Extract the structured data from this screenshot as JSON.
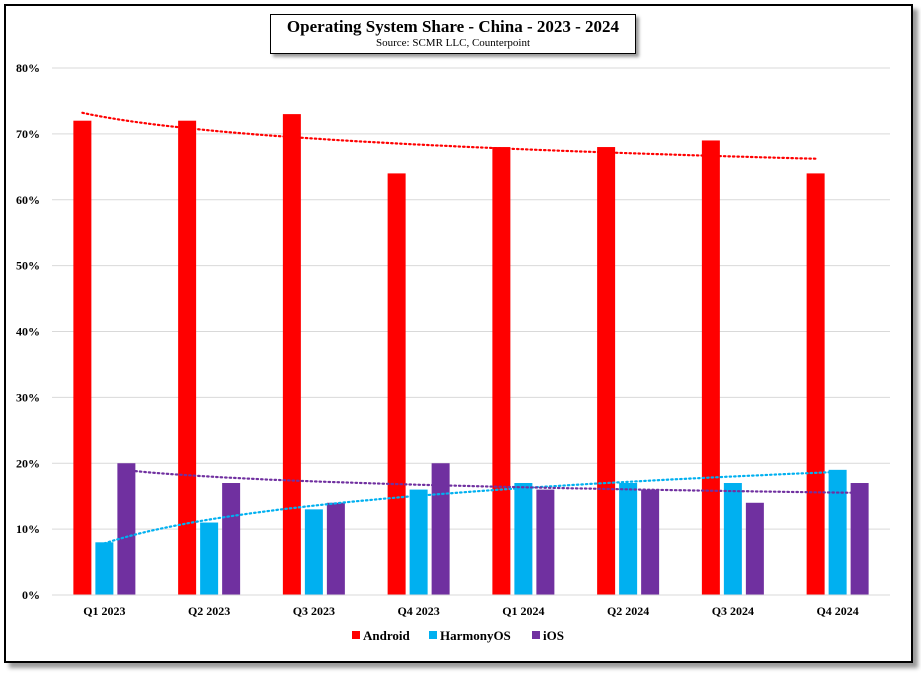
{
  "title": "Operating System Share - China - 2023 - 2024",
  "subtitle": "Source: SCMR LLC, Counterpoint",
  "colors": {
    "android": "#ff0000",
    "harmonyos": "#00b0f0",
    "ios": "#7030a0"
  },
  "chart_data": {
    "type": "bar",
    "title": "Operating System Share - China - 2023 - 2024",
    "subtitle": "Source: SCMR LLC, Counterpoint",
    "categories": [
      "Q1 2023",
      "Q2 2023",
      "Q3 2023",
      "Q4 2023",
      "Q1 2024",
      "Q2 2024",
      "Q3 2024",
      "Q4 2024"
    ],
    "series": [
      {
        "name": "Android",
        "color": "#ff0000",
        "values": [
          72,
          72,
          73,
          64,
          68,
          68,
          69,
          64
        ]
      },
      {
        "name": "HarmonyOS",
        "color": "#00b0f0",
        "values": [
          8,
          11,
          13,
          16,
          17,
          17,
          17,
          19
        ]
      },
      {
        "name": "iOS",
        "color": "#7030a0",
        "values": [
          20,
          17,
          14,
          20,
          16,
          16,
          14,
          17
        ]
      }
    ],
    "trendlines": [
      {
        "series": "Android",
        "type": "logarithmic",
        "color": "#ff0000"
      },
      {
        "series": "HarmonyOS",
        "type": "logarithmic",
        "color": "#00b0f0"
      },
      {
        "series": "iOS",
        "type": "logarithmic",
        "color": "#7030a0"
      }
    ],
    "yticks": [
      "0%",
      "10%",
      "20%",
      "30%",
      "40%",
      "50%",
      "60%",
      "70%",
      "80%"
    ],
    "ylim": [
      0,
      80
    ],
    "xlabel": "",
    "ylabel": "",
    "grid": true,
    "legend_position": "bottom"
  }
}
